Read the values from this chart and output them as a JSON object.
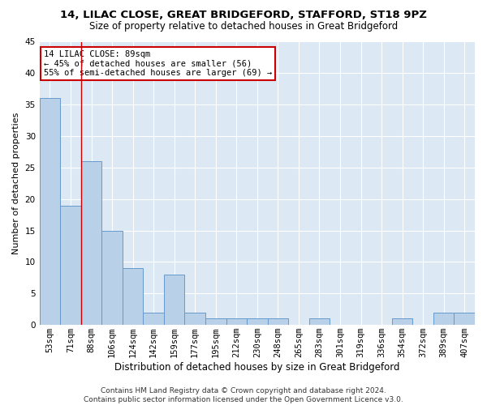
{
  "title1": "14, LILAC CLOSE, GREAT BRIDGEFORD, STAFFORD, ST18 9PZ",
  "title2": "Size of property relative to detached houses in Great Bridgeford",
  "xlabel": "Distribution of detached houses by size in Great Bridgeford",
  "ylabel": "Number of detached properties",
  "footnote": "Contains HM Land Registry data © Crown copyright and database right 2024.\nContains public sector information licensed under the Open Government Licence v3.0.",
  "categories": [
    "53sqm",
    "71sqm",
    "88sqm",
    "106sqm",
    "124sqm",
    "142sqm",
    "159sqm",
    "177sqm",
    "195sqm",
    "212sqm",
    "230sqm",
    "248sqm",
    "265sqm",
    "283sqm",
    "301sqm",
    "319sqm",
    "336sqm",
    "354sqm",
    "372sqm",
    "389sqm",
    "407sqm"
  ],
  "values": [
    36,
    19,
    26,
    15,
    9,
    2,
    8,
    2,
    1,
    1,
    1,
    1,
    0,
    1,
    0,
    0,
    0,
    1,
    0,
    2,
    2
  ],
  "bar_color": "#b8d0e8",
  "bar_edge_color": "#6699cc",
  "annotation_text": "14 LILAC CLOSE: 89sqm\n← 45% of detached houses are smaller (56)\n55% of semi-detached houses are larger (69) →",
  "annotation_box_color": "#ffffff",
  "annotation_box_edge_color": "#cc0000",
  "fig_bg_color": "#ffffff",
  "plot_bg_color": "#dce9f5",
  "grid_color": "#ffffff",
  "vline_color": "#cc0000",
  "ylim": [
    0,
    45
  ],
  "yticks": [
    0,
    5,
    10,
    15,
    20,
    25,
    30,
    35,
    40,
    45
  ],
  "title1_fontsize": 9.5,
  "title2_fontsize": 8.5,
  "xlabel_fontsize": 8.5,
  "ylabel_fontsize": 8,
  "tick_fontsize": 7.5,
  "annot_fontsize": 7.5,
  "footnote_fontsize": 6.5
}
